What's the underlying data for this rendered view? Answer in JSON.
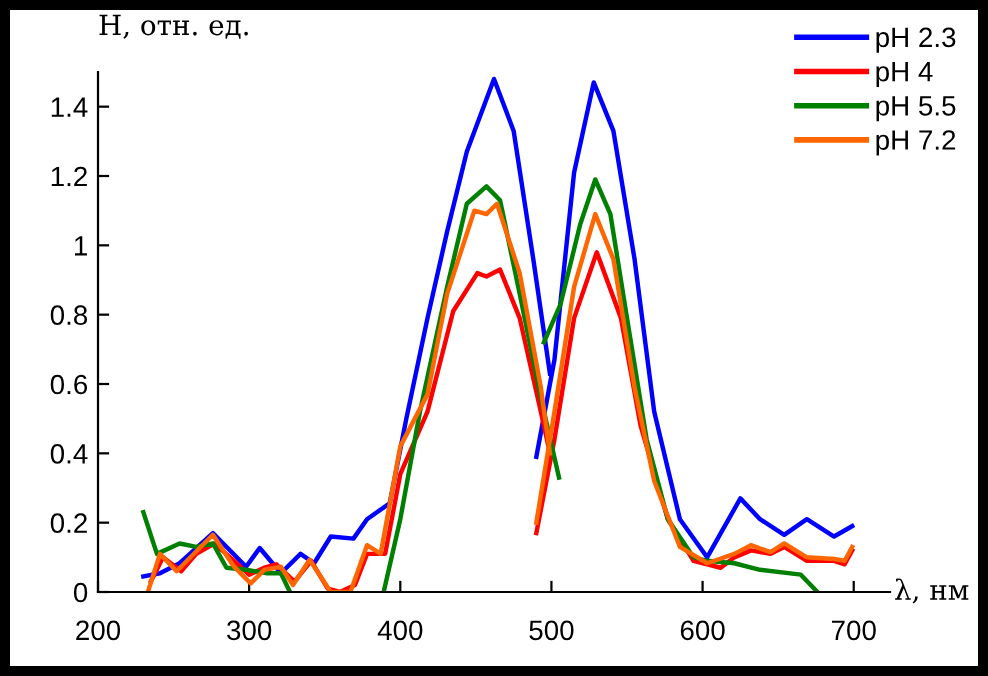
{
  "chart_data": {
    "type": "line",
    "xlabel": "λ, нм",
    "ylabel": "H, отн. ед.",
    "xlim": [
      200,
      724
    ],
    "ylim": [
      0,
      1.5
    ],
    "xticks": [
      200,
      300,
      400,
      500,
      600,
      700
    ],
    "yticks": [
      0,
      0.2,
      0.4,
      0.6,
      0.8,
      1,
      1.2,
      1.4
    ],
    "grid": false,
    "legend": "top right",
    "marker": "none",
    "line_style": "solid",
    "series": [
      {
        "name": "pH 2.3",
        "color": "#0000ff",
        "x": [
          230,
          241,
          254,
          276,
          298,
          307,
          321,
          334,
          343,
          354,
          369,
          378,
          393,
          404,
          418,
          431,
          444,
          462,
          475,
          488,
          499,
          null,
          490,
          502,
          515,
          528,
          541,
          555,
          568,
          585,
          603,
          625,
          638,
          654,
          669,
          687,
          699
        ],
        "values": [
          0.045,
          0.054,
          0.083,
          0.17,
          0.073,
          0.127,
          0.054,
          0.11,
          0.083,
          0.16,
          0.154,
          0.21,
          0.256,
          0.5,
          0.79,
          1.04,
          1.27,
          1.48,
          1.33,
          0.96,
          0.63,
          null,
          0.39,
          0.67,
          1.21,
          1.47,
          1.33,
          0.96,
          0.52,
          0.21,
          0.1,
          0.27,
          0.21,
          0.165,
          0.21,
          0.16,
          0.19
        ]
      },
      {
        "name": "pH 4",
        "color": "#ff0000",
        "x": [
          235,
          243,
          255,
          265,
          277,
          290,
          300,
          310,
          318,
          330,
          341,
          352,
          360,
          370,
          378,
          390,
          400,
          418,
          435,
          451,
          457,
          466,
          479,
          493,
          499,
          null,
          490,
          502,
          515,
          530,
          546,
          559,
          577,
          594,
          612,
          621,
          632,
          645,
          654,
          669,
          687,
          694,
          699
        ],
        "values": [
          0.03,
          0.1,
          0.06,
          0.11,
          0.14,
          0.09,
          0.05,
          0.07,
          0.08,
          0.03,
          0.09,
          0.01,
          0,
          0.02,
          0.11,
          0.11,
          0.34,
          0.52,
          0.81,
          0.92,
          0.91,
          0.93,
          0.79,
          0.52,
          0.4,
          null,
          0.17,
          0.44,
          0.79,
          0.98,
          0.79,
          0.48,
          0.21,
          0.09,
          0.07,
          0.1,
          0.12,
          0.11,
          0.13,
          0.09,
          0.09,
          0.08,
          0.12
        ]
      },
      {
        "name": "pH 5.5",
        "color": "#008000",
        "x": [
          230,
          239,
          254,
          265,
          276,
          285,
          298,
          312,
          321,
          327,
          null,
          389,
          400,
          413,
          431,
          444,
          457,
          466,
          479,
          493,
          505,
          null,
          495,
          506,
          519,
          529,
          539,
          550,
          563,
          577,
          594,
          603,
          621,
          638,
          665,
          676
        ],
        "values": [
          0.23,
          0.11,
          0.14,
          0.13,
          0.14,
          0.07,
          0.064,
          0.054,
          0.054,
          0,
          null,
          0,
          0.21,
          0.52,
          0.88,
          1.12,
          1.17,
          1.13,
          0.86,
          0.56,
          0.33,
          null,
          0.72,
          0.83,
          1.06,
          1.19,
          1.09,
          0.79,
          0.44,
          0.21,
          0.1,
          0.09,
          0.083,
          0.064,
          0.05,
          0
        ]
      },
      {
        "name": "pH 7.2",
        "color": "#ff6600",
        "x": [
          233,
          241,
          252,
          276,
          290,
          301,
          310,
          321,
          329,
          340,
          354,
          367,
          378,
          387,
          400,
          418,
          431,
          449,
          457,
          464,
          479,
          493,
          499,
          null,
          490,
          502,
          515,
          529,
          541,
          555,
          568,
          585,
          603,
          621,
          632,
          645,
          654,
          669,
          687,
          694,
          699
        ],
        "values": [
          0,
          0.11,
          0.06,
          0.165,
          0.073,
          0.025,
          0.064,
          0.073,
          0.02,
          0.093,
          0,
          0,
          0.135,
          0.11,
          0.42,
          0.57,
          0.86,
          1.1,
          1.09,
          1.12,
          0.92,
          0.59,
          0.4,
          null,
          0.2,
          0.52,
          0.88,
          1.09,
          0.96,
          0.59,
          0.32,
          0.13,
          0.083,
          0.11,
          0.135,
          0.115,
          0.14,
          0.1,
          0.095,
          0.09,
          0.13
        ]
      }
    ]
  }
}
